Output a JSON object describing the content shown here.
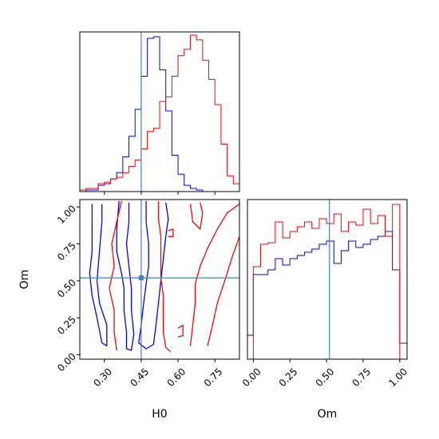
{
  "chart_data": [
    {
      "type": "histogram",
      "panel": "H0 marginal",
      "xlim": [
        0.2,
        0.85
      ],
      "truth": 0.45,
      "bin_edges": [
        0.2,
        0.225,
        0.25,
        0.275,
        0.3,
        0.325,
        0.35,
        0.375,
        0.4,
        0.425,
        0.45,
        0.475,
        0.5,
        0.525,
        0.55,
        0.575,
        0.6,
        0.625,
        0.65,
        0.675,
        0.7,
        0.725,
        0.75,
        0.775,
        0.8,
        0.825,
        0.85
      ],
      "series": [
        {
          "color": "#0000ff",
          "values": [
            0,
            1,
            1,
            4,
            5,
            8,
            12,
            22,
            35,
            52,
            73,
            97,
            98,
            77,
            51,
            23,
            11,
            4,
            2,
            1,
            0,
            0,
            0,
            0,
            0,
            0
          ]
        },
        {
          "color": "#ff0000",
          "values": [
            1,
            2,
            2,
            5,
            6,
            8,
            9,
            12,
            16,
            20,
            27,
            38,
            40,
            57,
            60,
            73,
            86,
            90,
            99,
            96,
            83,
            71,
            55,
            30,
            10,
            5
          ]
        }
      ]
    },
    {
      "type": "contour",
      "panel": "H0 vs Om",
      "xlabel": "H0",
      "ylabel": "Om",
      "xlim": [
        0.2,
        0.85
      ],
      "ylim": [
        -0.03,
        1.05
      ],
      "xticks": [
        "0.30",
        "0.45",
        "0.60",
        "0.75"
      ],
      "yticks": [
        "0.00",
        "0.25",
        "0.50",
        "0.75",
        "1.00"
      ],
      "truth": {
        "x": 0.45,
        "y": 0.52
      },
      "contours": [
        {
          "color": "#0000ff",
          "points": [
            [
              0.25,
              1.02
            ],
            [
              0.25,
              0.7
            ],
            [
              0.24,
              0.55
            ],
            [
              0.25,
              0.4
            ],
            [
              0.27,
              0.25
            ],
            [
              0.29,
              0.08
            ],
            [
              0.31,
              0.06
            ],
            [
              0.31,
              0.2
            ],
            [
              0.28,
              0.35
            ],
            [
              0.27,
              0.5
            ],
            [
              0.28,
              0.7
            ],
            [
              0.29,
              0.9
            ],
            [
              0.29,
              1.02
            ]
          ]
        },
        {
          "color": "#0000ff",
          "points": [
            [
              0.36,
              1.04
            ],
            [
              0.35,
              0.85
            ],
            [
              0.35,
              0.7
            ],
            [
              0.37,
              0.55
            ],
            [
              0.38,
              0.45
            ],
            [
              0.38,
              0.3
            ],
            [
              0.39,
              0.15
            ],
            [
              0.39,
              0.04
            ],
            [
              0.41,
              0.03
            ],
            [
              0.42,
              0.14
            ],
            [
              0.41,
              0.3
            ],
            [
              0.41,
              0.45
            ],
            [
              0.4,
              0.6
            ],
            [
              0.39,
              0.75
            ],
            [
              0.4,
              0.9
            ],
            [
              0.4,
              1.03
            ]
          ]
        },
        {
          "color": "#0000ff",
          "points": [
            [
              0.47,
              1.04
            ],
            [
              0.47,
              0.9
            ],
            [
              0.48,
              0.75
            ],
            [
              0.48,
              0.6
            ],
            [
              0.47,
              0.48
            ],
            [
              0.46,
              0.35
            ],
            [
              0.45,
              0.2
            ],
            [
              0.44,
              0.08
            ],
            [
              0.47,
              0.04
            ],
            [
              0.5,
              0.07
            ],
            [
              0.51,
              0.2
            ],
            [
              0.52,
              0.35
            ],
            [
              0.53,
              0.5
            ],
            [
              0.54,
              0.65
            ],
            [
              0.55,
              0.8
            ],
            [
              0.56,
              0.92
            ],
            [
              0.55,
              1.03
            ]
          ]
        },
        {
          "color": "#ff0000",
          "points": [
            [
              0.37,
              1.04
            ],
            [
              0.35,
              0.9
            ],
            [
              0.33,
              0.75
            ],
            [
              0.34,
              0.6
            ],
            [
              0.32,
              0.45
            ],
            [
              0.34,
              0.3
            ],
            [
              0.34,
              0.15
            ],
            [
              0.35,
              0.03
            ]
          ]
        },
        {
          "color": "#ff0000",
          "points": [
            [
              0.52,
              1.04
            ],
            [
              0.52,
              0.92
            ],
            [
              0.53,
              0.8
            ],
            [
              0.53,
              0.65
            ],
            [
              0.53,
              0.52
            ],
            [
              0.54,
              0.4
            ],
            [
              0.54,
              0.28
            ],
            [
              0.54,
              0.15
            ],
            [
              0.55,
              0.05
            ],
            [
              0.57,
              0.02
            ]
          ]
        },
        {
          "color": "#ff0000",
          "points": [
            [
              0.65,
              0.06
            ],
            [
              0.66,
              0.2
            ],
            [
              0.67,
              0.35
            ],
            [
              0.67,
              0.48
            ],
            [
              0.69,
              0.6
            ],
            [
              0.72,
              0.72
            ],
            [
              0.76,
              0.85
            ],
            [
              0.8,
              0.96
            ],
            [
              0.85,
              1.02
            ]
          ]
        },
        {
          "color": "#ff0000",
          "points": [
            [
              0.72,
              0.06
            ],
            [
              0.74,
              0.2
            ],
            [
              0.76,
              0.35
            ],
            [
              0.79,
              0.5
            ],
            [
              0.82,
              0.66
            ],
            [
              0.85,
              0.8
            ]
          ]
        },
        {
          "color": "#ff0000",
          "points": [
            [
              0.6,
              0.18
            ],
            [
              0.62,
              0.2
            ],
            [
              0.62,
              0.13
            ],
            [
              0.6,
              0.12
            ]
          ]
        },
        {
          "color": "#ff0000",
          "points": [
            [
              0.65,
              1.02
            ],
            [
              0.66,
              0.9
            ],
            [
              0.69,
              0.85
            ],
            [
              0.7,
              0.96
            ],
            [
              0.69,
              1.03
            ]
          ]
        },
        {
          "color": "#ff0000",
          "points": [
            [
              0.56,
              0.84
            ],
            [
              0.58,
              0.85
            ],
            [
              0.58,
              0.8
            ],
            [
              0.56,
              0.8
            ]
          ]
        }
      ]
    },
    {
      "type": "histogram",
      "panel": "Om marginal",
      "xlabel": "Om",
      "xlim": [
        -0.04,
        1.05
      ],
      "xticks": [
        "0.00",
        "0.25",
        "0.50",
        "0.75",
        "1.00"
      ],
      "truth": 0.52,
      "bin_edges": [
        -0.04,
        0.0,
        0.05,
        0.1,
        0.15,
        0.2,
        0.25,
        0.3,
        0.35,
        0.4,
        0.45,
        0.5,
        0.55,
        0.6,
        0.65,
        0.7,
        0.75,
        0.8,
        0.85,
        0.9,
        0.95,
        1.0,
        1.05
      ],
      "series": [
        {
          "color": "#0000ff",
          "values": [
            0.15,
            0.53,
            0.53,
            0.56,
            0.63,
            0.59,
            0.63,
            0.65,
            0.67,
            0.69,
            0.72,
            0.74,
            0.6,
            0.68,
            0.74,
            0.7,
            0.72,
            0.75,
            0.77,
            0.8,
            0.56,
            0.1
          ]
        },
        {
          "color": "#ff0000",
          "values": [
            0.0,
            0.58,
            0.72,
            0.73,
            0.86,
            0.76,
            0.8,
            0.83,
            0.86,
            0.82,
            0.88,
            0.85,
            0.91,
            0.8,
            0.86,
            0.84,
            0.94,
            0.85,
            0.9,
            0.77,
            0.97,
            0.0
          ]
        }
      ]
    }
  ]
}
